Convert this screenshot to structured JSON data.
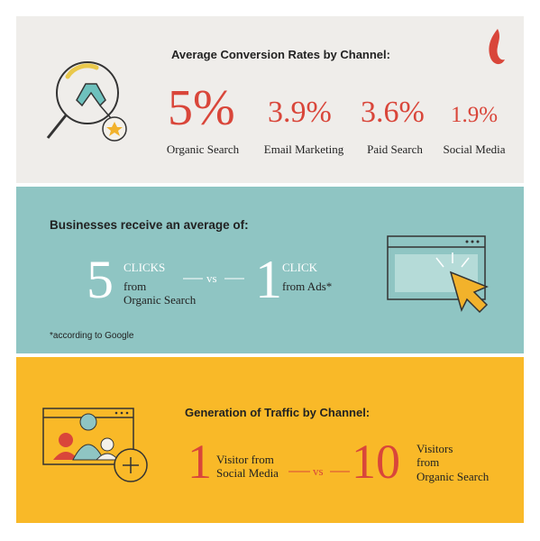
{
  "conversion": {
    "title": "Average Conversion Rates by Channel:",
    "items": [
      {
        "value": "5%",
        "label": "Organic Search"
      },
      {
        "value": "3.9%",
        "label": "Email Marketing"
      },
      {
        "value": "3.6%",
        "label": "Paid Search"
      },
      {
        "value": "1.9%",
        "label": "Social Media"
      }
    ]
  },
  "clicks": {
    "title": "Businesses receive an average of:",
    "left": {
      "number": "5",
      "unit": "CLICKS",
      "source": [
        "from",
        "Organic Search"
      ]
    },
    "vs": "vs",
    "right": {
      "number": "1",
      "unit": "CLICK",
      "source": [
        "from Ads*"
      ]
    },
    "footnote": "*according to Google"
  },
  "traffic": {
    "title": "Generation of Traffic by Channel:",
    "left": {
      "number": "1",
      "lines": [
        "Visitor from",
        "Social Media"
      ]
    },
    "vs": "vs",
    "right": {
      "number": "10",
      "lines": [
        "Visitors",
        "from",
        "Organic Search"
      ]
    }
  }
}
